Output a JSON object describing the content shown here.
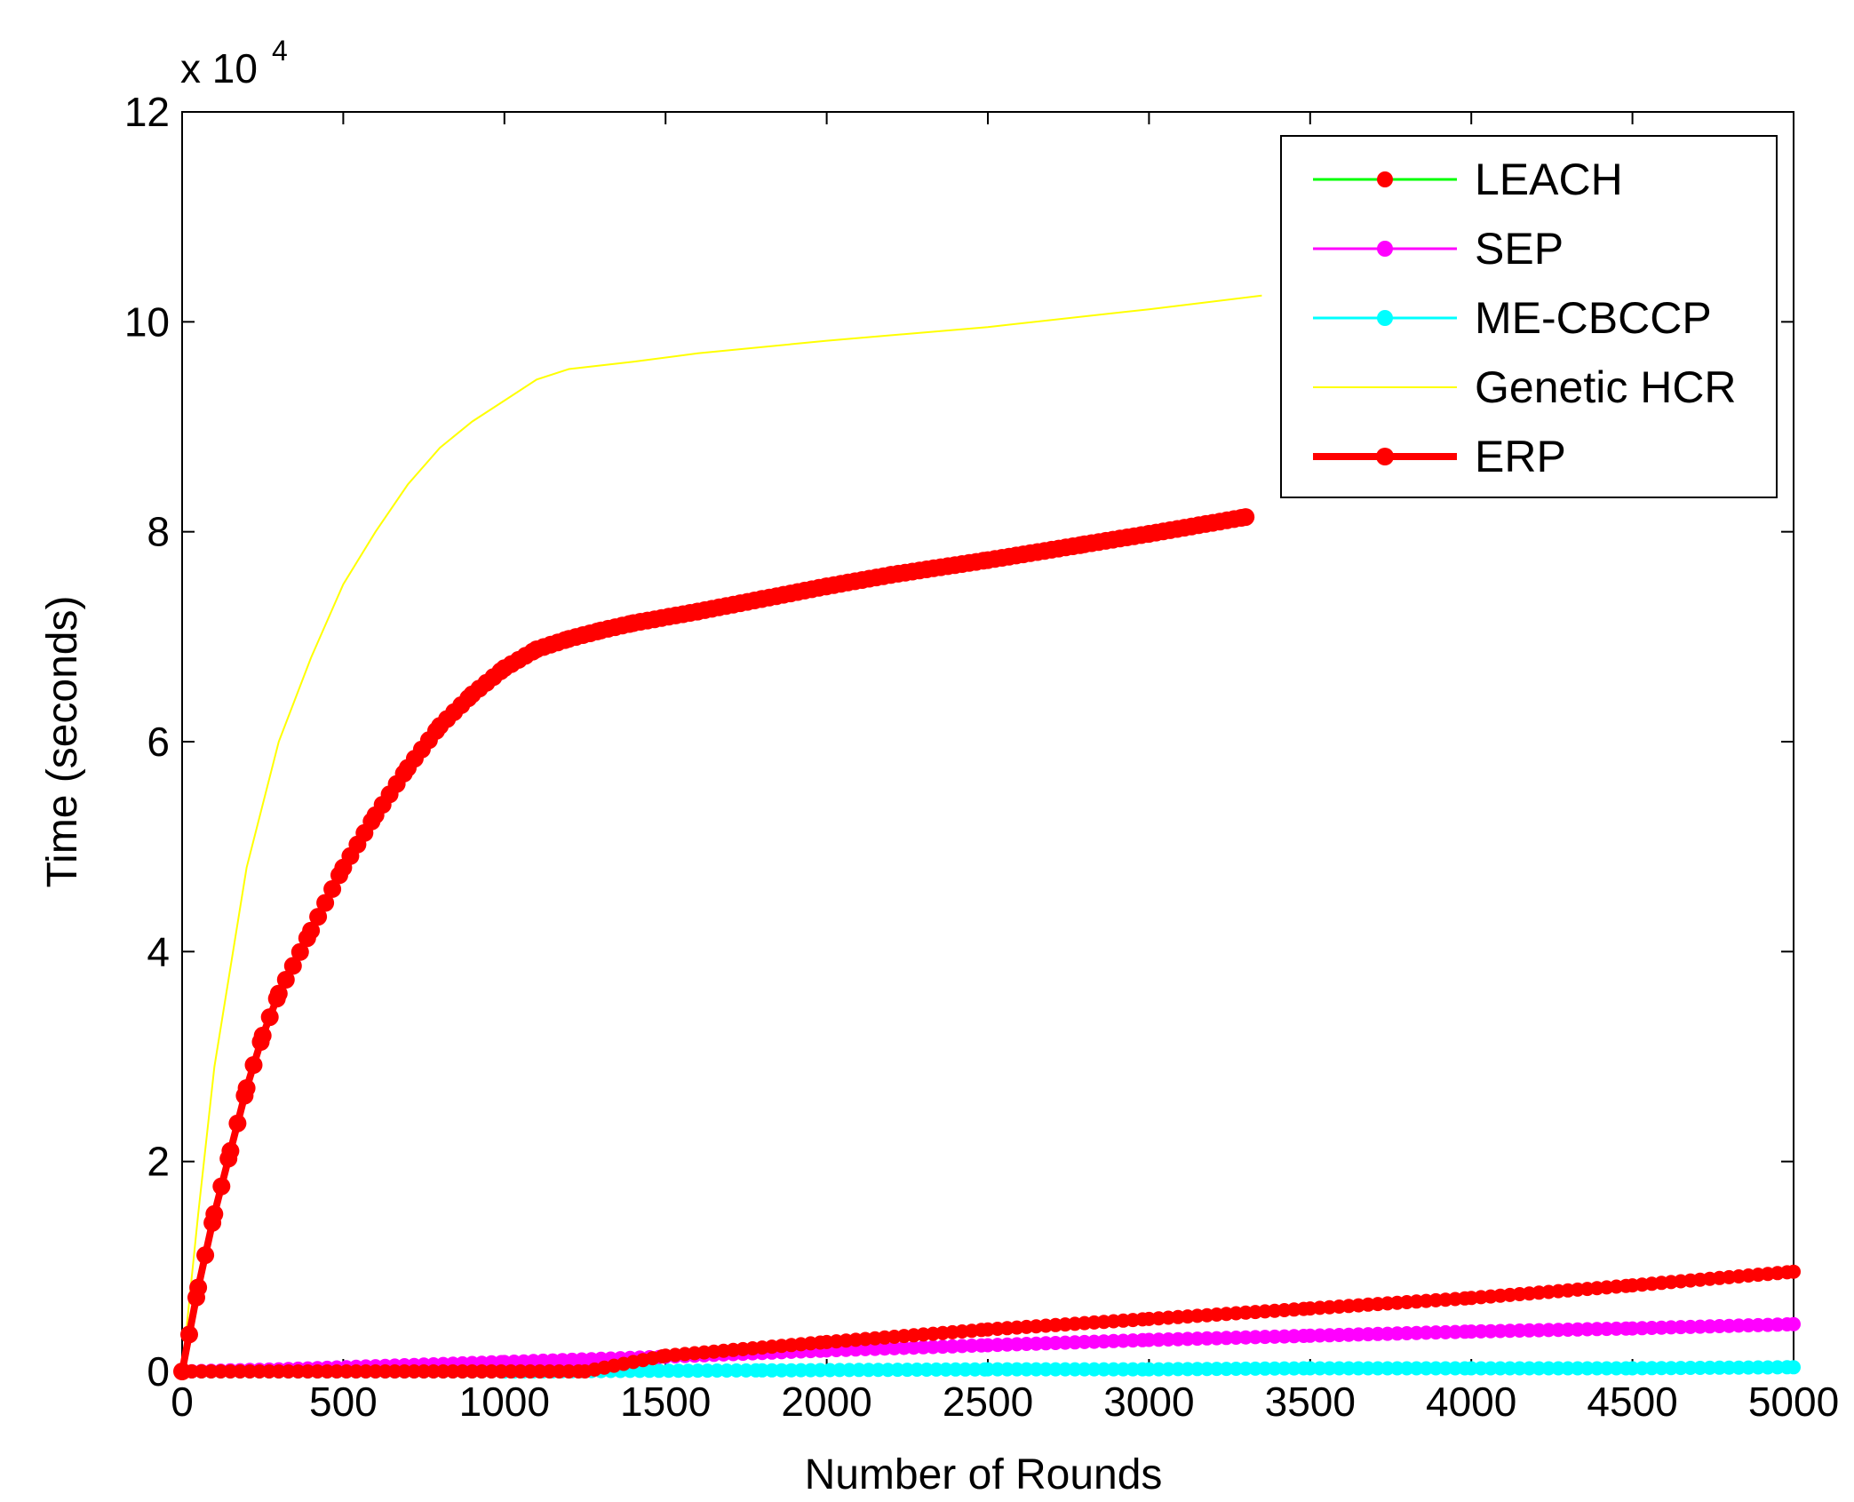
{
  "chart_data": {
    "type": "line",
    "title": "",
    "xlabel": "Number of Rounds",
    "ylabel": "Time (seconds)",
    "y_multiplier_label": "x 10",
    "y_multiplier_exponent": "4",
    "xlim": [
      0,
      5000
    ],
    "ylim": [
      0,
      12
    ],
    "xticks": [
      "0",
      "500",
      "1000",
      "1500",
      "2000",
      "2500",
      "3000",
      "3500",
      "4000",
      "4500",
      "5000"
    ],
    "yticks": [
      "0",
      "2",
      "4",
      "6",
      "8",
      "10",
      "12"
    ],
    "grid": false,
    "legend_position": "top-right",
    "series": [
      {
        "name": "LEACH",
        "color": "#00ff00",
        "marker_color": "#ff0000",
        "style": "line-with-dots",
        "x": [
          0,
          1250,
          1500,
          2000,
          2500,
          3000,
          3500,
          4000,
          4500,
          5000
        ],
        "y": [
          0,
          0,
          0.15,
          0.28,
          0.4,
          0.5,
          0.6,
          0.7,
          0.82,
          0.95
        ]
      },
      {
        "name": "SEP",
        "color": "#ff00ff",
        "marker_color": "#ff00ff",
        "style": "line-with-dots",
        "x": [
          0,
          300,
          1000,
          1500,
          2000,
          2500,
          3000,
          3500,
          4000,
          4500,
          5000
        ],
        "y": [
          0,
          0.02,
          0.09,
          0.14,
          0.2,
          0.25,
          0.3,
          0.34,
          0.38,
          0.41,
          0.45
        ]
      },
      {
        "name": "ME-CBCCP",
        "color": "#00ffff",
        "marker_color": "#00ffff",
        "style": "line-with-dots",
        "x": [
          0,
          1000,
          1800,
          2500,
          3000,
          3500,
          4000,
          4500,
          5000
        ],
        "y": [
          0,
          0,
          0.01,
          0.02,
          0.02,
          0.03,
          0.03,
          0.03,
          0.04
        ]
      },
      {
        "name": "Genetic HCR",
        "color": "#ffff00",
        "marker_color": "",
        "style": "thin-line",
        "x": [
          0,
          50,
          100,
          200,
          300,
          400,
          500,
          600,
          700,
          800,
          900,
          1000,
          1100,
          1200,
          1400,
          1600,
          2000,
          2500,
          3000,
          3350
        ],
        "y": [
          0,
          1.5,
          2.9,
          4.8,
          6.0,
          6.8,
          7.5,
          8.0,
          8.45,
          8.8,
          9.05,
          9.25,
          9.45,
          9.55,
          9.62,
          9.7,
          9.82,
          9.95,
          10.12,
          10.25
        ]
      },
      {
        "name": "ERP",
        "color": "#ff0000",
        "marker_color": "#ff0000",
        "style": "thick-line-with-dots",
        "x": [
          0,
          50,
          100,
          150,
          200,
          250,
          300,
          400,
          500,
          600,
          700,
          800,
          900,
          1000,
          1100,
          1200,
          1300,
          1400,
          1600,
          1800,
          2000,
          2200,
          2500,
          2800,
          3000,
          3300
        ],
        "y": [
          0,
          0.8,
          1.5,
          2.1,
          2.7,
          3.2,
          3.6,
          4.2,
          4.8,
          5.3,
          5.75,
          6.15,
          6.45,
          6.7,
          6.88,
          6.98,
          7.06,
          7.13,
          7.24,
          7.36,
          7.48,
          7.59,
          7.73,
          7.88,
          7.98,
          8.14
        ]
      }
    ]
  }
}
